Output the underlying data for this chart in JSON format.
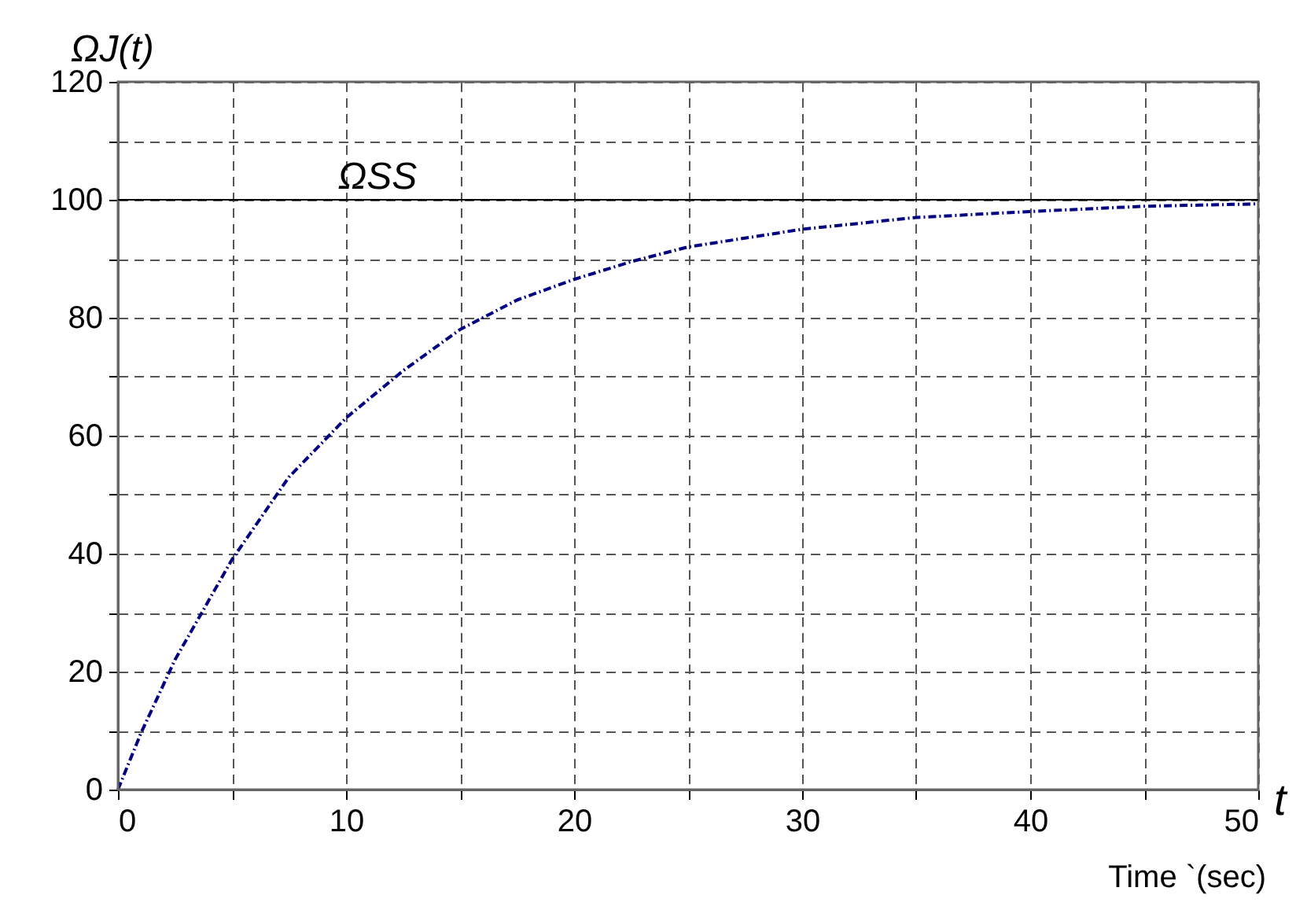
{
  "chart_data": {
    "type": "line",
    "xlabel": "Time `(sec)",
    "ylabel": "ΩJ(t)",
    "annotations": [
      "t"
    ],
    "x": [
      0,
      1,
      2.5,
      5,
      7.5,
      10,
      12.5,
      15,
      17.5,
      20,
      22.5,
      25,
      30,
      35,
      40,
      45,
      50
    ],
    "series": [
      {
        "color": "#000080",
        "values": [
          0,
          9.5,
          22,
          39,
          53,
          63,
          71,
          78,
          83,
          86.5,
          89.5,
          92,
          95,
          97,
          98,
          98.9,
          99.3
        ]
      }
    ],
    "xlim": [
      0,
      50
    ],
    "ylim": [
      0,
      120
    ],
    "xticks": [
      0,
      {
        "value": 5,
        "label": null
      },
      10,
      {
        "value": 15,
        "label": null
      },
      20,
      {
        "value": 25,
        "label": null
      },
      30,
      {
        "value": 35,
        "label": null
      },
      40,
      {
        "value": 45,
        "label": null
      },
      50
    ],
    "yticks": [
      0,
      {
        "value": 10,
        "label": null
      },
      20,
      {
        "value": 30,
        "label": null
      },
      40,
      {
        "value": 50,
        "label": null
      },
      60,
      {
        "value": 70,
        "label": null
      },
      80,
      {
        "value": 90,
        "label": null
      },
      100,
      {
        "value": 110,
        "label": null
      },
      120
    ],
    "ref_lines": [
      {
        "axis": "y",
        "value": 100,
        "label": "ΩSS",
        "color": "#000000",
        "line_style": "solid"
      }
    ],
    "grid": true,
    "marker": "none",
    "line_style": "dashed"
  }
}
